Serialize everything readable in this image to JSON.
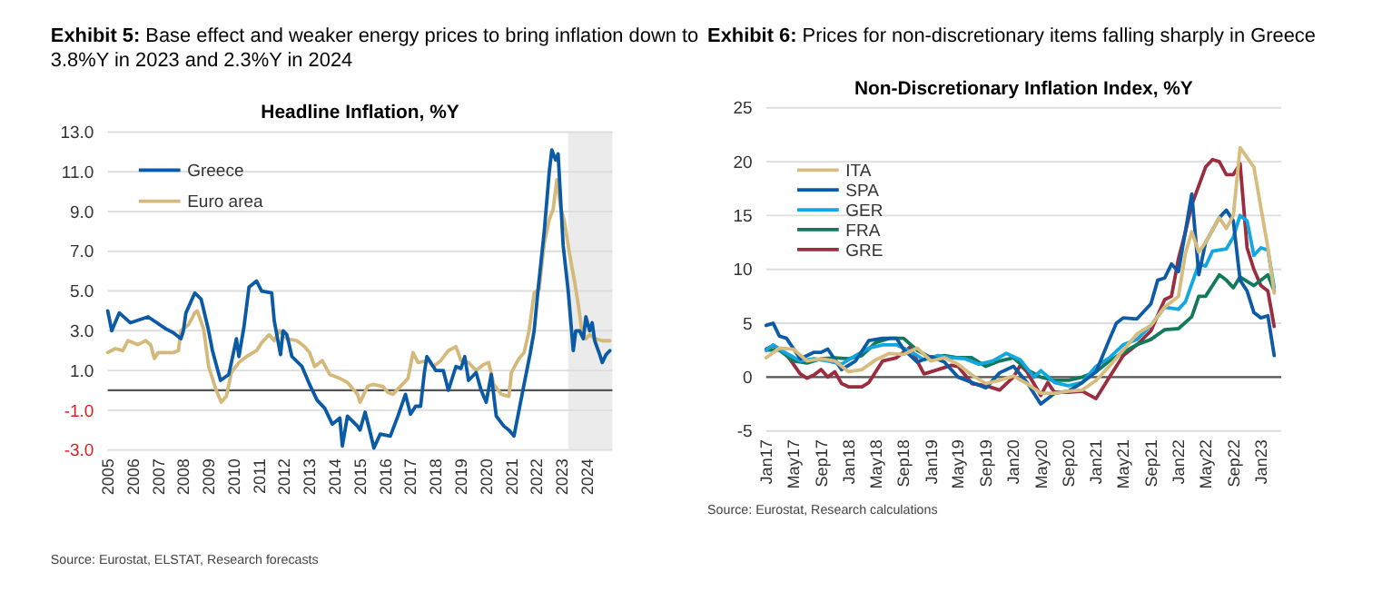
{
  "chart_data": [
    {
      "type": "line",
      "title": "Exhibit 5:  Base effect and weaker energy prices to bring inflation down to 3.8%Y in 2023 and 2.3%Y in 2024",
      "subtitle": "Headline Inflation, %Y",
      "annotations": [
        "Source: Eurostat, ELSTAT, Research forecasts"
      ],
      "series": [
        {
          "name": "Greece",
          "color": "#0b5aa5",
          "x": [
            2005.0,
            2005.16,
            2005.46,
            2005.9,
            2006.6,
            2007.3,
            2007.6,
            2007.9,
            2008.0,
            2008.1,
            2008.45,
            2008.7,
            2009.0,
            2009.15,
            2009.47,
            2009.8,
            2010.1,
            2010.2,
            2010.4,
            2010.6,
            2010.9,
            2011.1,
            2011.5,
            2011.6,
            2011.85,
            2011.95,
            2012.1,
            2012.3,
            2012.7,
            2013.0,
            2013.3,
            2013.6,
            2013.9,
            2014.2,
            2014.3,
            2014.5,
            2014.9,
            2015.0,
            2015.2,
            2015.4,
            2015.55,
            2015.8,
            2016.2,
            2016.5,
            2016.8,
            2017.0,
            2017.2,
            2017.4,
            2017.55,
            2017.65,
            2018.0,
            2018.3,
            2018.5,
            2018.8,
            2019.0,
            2019.15,
            2019.3,
            2019.6,
            2019.8,
            2020.0,
            2020.2,
            2020.4,
            2020.7,
            2020.9,
            2021.1,
            2021.3,
            2021.5,
            2021.75,
            2021.9,
            2022.05,
            2022.3,
            2022.5,
            2022.6,
            2022.75,
            2022.85,
            2022.95,
            2023.05,
            2023.25,
            2023.45,
            2023.55,
            2023.7,
            2023.85,
            2023.95,
            2024.1,
            2024.2,
            2024.3,
            2024.5,
            2024.6,
            2024.75,
            2024.9
          ],
          "values": [
            4.0,
            3.0,
            3.9,
            3.4,
            3.7,
            3.1,
            2.9,
            2.6,
            3.0,
            3.9,
            4.9,
            4.6,
            3.0,
            2.0,
            0.5,
            0.8,
            2.6,
            1.7,
            3.2,
            5.2,
            5.5,
            5.0,
            4.9,
            3.5,
            1.8,
            3.0,
            2.8,
            1.7,
            1.2,
            0.3,
            -0.5,
            -0.9,
            -1.7,
            -1.4,
            -2.8,
            -1.3,
            -1.8,
            -2.0,
            -1.1,
            -2.1,
            -2.9,
            -2.2,
            -2.3,
            -1.3,
            -0.2,
            -1.2,
            -0.8,
            -0.8,
            0.9,
            1.7,
            1.0,
            1.0,
            0.0,
            1.2,
            1.1,
            1.7,
            0.5,
            0.9,
            0.0,
            -0.6,
            0.8,
            -1.3,
            -1.8,
            -2.0,
            -2.3,
            -1.0,
            0.3,
            1.9,
            3.0,
            5.0,
            8.0,
            11.0,
            12.1,
            11.6,
            11.9,
            9.6,
            7.3,
            5.0,
            2.0,
            3.0,
            3.0,
            2.6,
            3.7,
            3.0,
            3.4,
            2.5,
            1.8,
            1.4,
            1.8,
            2.0
          ]
        },
        {
          "name": "Euro area",
          "color": "#d4b97a",
          "x": [
            2005.0,
            2005.3,
            2005.6,
            2005.8,
            2006.2,
            2006.5,
            2006.7,
            2006.85,
            2007.0,
            2007.6,
            2007.8,
            2007.9,
            2008.2,
            2008.45,
            2008.55,
            2008.8,
            2009.0,
            2009.3,
            2009.5,
            2009.7,
            2009.9,
            2010.2,
            2010.5,
            2010.9,
            2011.1,
            2011.4,
            2011.6,
            2011.8,
            2012.1,
            2012.5,
            2012.8,
            2013.0,
            2013.2,
            2013.5,
            2013.8,
            2014.2,
            2014.5,
            2014.9,
            2015.0,
            2015.3,
            2015.5,
            2015.9,
            2016.1,
            2016.3,
            2016.6,
            2016.9,
            2017.1,
            2017.3,
            2017.7,
            2017.9,
            2018.2,
            2018.5,
            2018.8,
            2019.0,
            2019.3,
            2019.6,
            2019.9,
            2020.1,
            2020.3,
            2020.6,
            2020.9,
            2021.0,
            2021.3,
            2021.5,
            2021.7,
            2021.9,
            2022.1,
            2022.3,
            2022.5,
            2022.65,
            2022.8,
            2022.95,
            2023.1,
            2023.3,
            2023.5,
            2023.65,
            2023.8,
            2023.95,
            2024.1,
            2024.3,
            2024.6,
            2024.9
          ],
          "values": [
            1.9,
            2.1,
            2.0,
            2.5,
            2.3,
            2.5,
            2.3,
            1.6,
            1.9,
            1.9,
            2.0,
            3.0,
            3.3,
            3.9,
            4.0,
            3.1,
            1.2,
            0.0,
            -0.6,
            -0.3,
            0.9,
            1.4,
            1.7,
            2.0,
            2.4,
            2.8,
            2.5,
            3.0,
            2.6,
            2.5,
            2.2,
            1.9,
            1.2,
            1.5,
            0.8,
            0.6,
            0.4,
            -0.2,
            -0.6,
            0.2,
            0.3,
            0.2,
            -0.1,
            -0.2,
            0.2,
            0.6,
            1.9,
            1.4,
            1.5,
            1.2,
            1.5,
            2.0,
            2.2,
            1.5,
            1.4,
            1.0,
            1.3,
            1.4,
            0.3,
            -0.2,
            -0.3,
            0.9,
            1.6,
            1.9,
            3.0,
            4.9,
            5.1,
            7.4,
            8.6,
            9.1,
            10.6,
            9.2,
            8.5,
            6.9,
            5.5,
            4.3,
            2.9,
            2.6,
            2.8,
            2.6,
            2.5,
            2.5
          ]
        }
      ],
      "xlim": [
        2005,
        2025
      ],
      "xticks": [
        2005,
        2006,
        2007,
        2008,
        2009,
        2010,
        2011,
        2012,
        2013,
        2014,
        2015,
        2016,
        2017,
        2018,
        2019,
        2020,
        2021,
        2022,
        2023,
        2024
      ],
      "ylim": [
        -3,
        13
      ],
      "yticks": [
        {
          "value": -3,
          "label": "-3.0"
        },
        {
          "value": -1,
          "label": "-1.0"
        },
        {
          "value": 1,
          "label": "1.0"
        },
        {
          "value": 3,
          "label": "3.0"
        },
        {
          "value": 5,
          "label": "5.0"
        },
        {
          "value": 7,
          "label": "7.0"
        },
        {
          "value": 9,
          "label": "9.0"
        },
        {
          "value": 11,
          "label": "11.0"
        },
        {
          "value": 13,
          "label": "13.0"
        }
      ],
      "grid": "y",
      "legend": "top left",
      "marker": "none",
      "line_style": "solid",
      "ref_lines": [
        {
          "axis": "y",
          "value": 0,
          "color": "#555555"
        }
      ],
      "bands": [
        {
          "axis": "x",
          "from": 2023.25,
          "to": 2025,
          "color": "#ebebeb"
        }
      ]
    },
    {
      "type": "line",
      "title": "Exhibit 6:  Prices for non-discretionary items falling sharply in Greece",
      "subtitle": "Non-Discretionary Inflation Index, %Y",
      "annotations": [
        "Source: Eurostat, Research calculations"
      ],
      "series": [
        {
          "name": "ITA",
          "color": "#d6bc7e",
          "x": [
            "2017-01",
            "2017-03",
            "2017-05",
            "2017-07",
            "2017-09",
            "2017-11",
            "2018-01",
            "2018-03",
            "2018-05",
            "2018-07",
            "2018-09",
            "2018-11",
            "2019-01",
            "2019-03",
            "2019-05",
            "2019-07",
            "2019-09",
            "2019-11",
            "2020-01",
            "2020-03",
            "2020-05",
            "2020-07",
            "2020-09",
            "2020-11",
            "2021-01",
            "2021-03",
            "2021-05",
            "2021-07",
            "2021-09",
            "2021-11",
            "2022-01",
            "2022-02",
            "2022-03",
            "2022-04",
            "2022-05",
            "2022-07",
            "2022-08",
            "2022-09",
            "2022-10",
            "2022-12",
            "2023-02",
            "2023-03"
          ],
          "values": [
            1.8,
            2.7,
            2.6,
            1.5,
            1.7,
            1.5,
            0.5,
            0.7,
            1.6,
            2.2,
            2.1,
            2.7,
            1.5,
            1.8,
            1.2,
            0.2,
            -0.6,
            -0.3,
            0.1,
            -0.6,
            -1.5,
            -1.5,
            -1.3,
            -1.2,
            -0.3,
            1.0,
            2.5,
            4.0,
            4.8,
            6.5,
            7.5,
            11.5,
            13.5,
            11.6,
            12.5,
            14.8,
            13.8,
            15.0,
            21.3,
            19.5,
            12.0,
            7.8
          ]
        },
        {
          "name": "SPA",
          "color": "#0d5aa7",
          "x": [
            "2017-01",
            "2017-02",
            "2017-03",
            "2017-04",
            "2017-06",
            "2017-08",
            "2017-09",
            "2017-10",
            "2017-12",
            "2018-02",
            "2018-04",
            "2018-06",
            "2018-08",
            "2018-09",
            "2018-11",
            "2019-01",
            "2019-03",
            "2019-05",
            "2019-07",
            "2019-09",
            "2019-11",
            "2020-01",
            "2020-03",
            "2020-05",
            "2020-07",
            "2020-09",
            "2020-11",
            "2021-01",
            "2021-03",
            "2021-04",
            "2021-05",
            "2021-07",
            "2021-09",
            "2021-10",
            "2021-11",
            "2021-12",
            "2022-01",
            "2022-03",
            "2022-04",
            "2022-05",
            "2022-07",
            "2022-08",
            "2022-09",
            "2022-10",
            "2022-11",
            "2022-12",
            "2023-01",
            "2023-02",
            "2023-03"
          ],
          "values": [
            4.8,
            5.0,
            3.8,
            3.6,
            1.7,
            2.3,
            2.3,
            2.6,
            0.7,
            1.5,
            3.4,
            3.6,
            3.6,
            2.6,
            1.4,
            1.9,
            1.4,
            0.0,
            -0.5,
            -1.0,
            0.4,
            1.0,
            -0.5,
            -2.5,
            -1.5,
            -1.3,
            -0.5,
            0.5,
            3.5,
            5.0,
            5.5,
            5.4,
            6.8,
            9.0,
            9.2,
            10.5,
            9.8,
            17.0,
            9.5,
            12.5,
            14.8,
            15.5,
            14.5,
            9.0,
            8.0,
            6.0,
            5.5,
            5.7,
            2.0
          ]
        },
        {
          "name": "GER",
          "color": "#12a7e0",
          "x": [
            "2017-01",
            "2017-02",
            "2017-04",
            "2017-06",
            "2017-08",
            "2017-10",
            "2017-12",
            "2018-02",
            "2018-04",
            "2018-06",
            "2018-08",
            "2018-10",
            "2018-12",
            "2019-02",
            "2019-04",
            "2019-06",
            "2019-08",
            "2019-10",
            "2019-12",
            "2020-02",
            "2020-04",
            "2020-05",
            "2020-07",
            "2020-09",
            "2020-11",
            "2021-01",
            "2021-03",
            "2021-05",
            "2021-07",
            "2021-09",
            "2021-11",
            "2022-01",
            "2022-02",
            "2022-04",
            "2022-05",
            "2022-06",
            "2022-08",
            "2022-09",
            "2022-10",
            "2022-11",
            "2022-12",
            "2023-01",
            "2023-02",
            "2023-03"
          ],
          "values": [
            2.5,
            3.0,
            2.2,
            1.5,
            1.7,
            1.5,
            1.2,
            2.0,
            2.7,
            3.0,
            3.0,
            2.4,
            1.6,
            2.0,
            1.8,
            1.7,
            1.2,
            1.5,
            2.2,
            1.6,
            0.0,
            0.6,
            -0.5,
            -0.8,
            -0.5,
            1.0,
            1.8,
            3.0,
            3.5,
            4.8,
            6.5,
            6.3,
            7.0,
            10.5,
            10.3,
            11.7,
            11.9,
            13.0,
            15.0,
            14.5,
            11.3,
            12.0,
            11.8,
            8.3
          ]
        },
        {
          "name": "FRA",
          "color": "#127a5c",
          "x": [
            "2017-01",
            "2017-03",
            "2017-05",
            "2017-07",
            "2017-09",
            "2017-11",
            "2018-01",
            "2018-03",
            "2018-05",
            "2018-07",
            "2018-09",
            "2018-11",
            "2019-01",
            "2019-03",
            "2019-05",
            "2019-07",
            "2019-09",
            "2019-11",
            "2020-01",
            "2020-03",
            "2020-05",
            "2020-07",
            "2020-09",
            "2020-11",
            "2021-01",
            "2021-03",
            "2021-05",
            "2021-07",
            "2021-09",
            "2021-11",
            "2022-01",
            "2022-03",
            "2022-04",
            "2022-05",
            "2022-07",
            "2022-08",
            "2022-09",
            "2022-10",
            "2022-12",
            "2023-02",
            "2023-03"
          ],
          "values": [
            2.5,
            2.5,
            1.5,
            1.3,
            1.7,
            1.8,
            1.7,
            2.0,
            3.2,
            3.6,
            3.6,
            2.5,
            1.8,
            2.0,
            1.8,
            1.8,
            1.0,
            1.5,
            1.8,
            0.7,
            0.0,
            -0.3,
            -0.3,
            0.0,
            0.5,
            1.5,
            2.3,
            3.0,
            3.5,
            4.4,
            4.5,
            5.6,
            7.5,
            7.5,
            9.5,
            9.0,
            8.3,
            9.3,
            8.5,
            9.5,
            8.0
          ]
        },
        {
          "name": "GRE",
          "color": "#9b2d3f",
          "x": [
            "2017-01",
            "2017-02",
            "2017-04",
            "2017-06",
            "2017-07",
            "2017-08",
            "2017-09",
            "2017-10",
            "2017-11",
            "2017-12",
            "2018-01",
            "2018-03",
            "2018-04",
            "2018-06",
            "2018-08",
            "2018-10",
            "2018-11",
            "2018-12",
            "2019-02",
            "2019-04",
            "2019-05",
            "2019-07",
            "2019-09",
            "2019-11",
            "2020-01",
            "2020-02",
            "2020-03",
            "2020-05",
            "2020-06",
            "2020-07",
            "2020-09",
            "2020-11",
            "2021-01",
            "2021-03",
            "2021-05",
            "2021-07",
            "2021-09",
            "2021-11",
            "2021-12",
            "2022-01",
            "2022-02",
            "2022-03",
            "2022-05",
            "2022-06",
            "2022-07",
            "2022-08",
            "2022-09",
            "2022-10",
            "2022-11",
            "2022-12",
            "2023-01",
            "2023-02",
            "2023-03"
          ],
          "values": [
            2.6,
            2.9,
            2.1,
            0.3,
            -0.1,
            0.2,
            0.7,
            0.0,
            0.5,
            -0.6,
            -0.9,
            -0.9,
            -0.5,
            1.5,
            1.8,
            2.8,
            1.5,
            0.3,
            0.7,
            1.1,
            1.0,
            -0.6,
            -0.8,
            -1.2,
            0.0,
            1.1,
            0.5,
            -1.7,
            -0.5,
            -1.4,
            -1.4,
            -1.3,
            -2.0,
            0.0,
            2.0,
            3.0,
            4.3,
            7.2,
            7.5,
            11.0,
            13.5,
            16.0,
            19.5,
            20.2,
            20.0,
            18.8,
            18.8,
            19.8,
            12.0,
            10.0,
            8.5,
            8.0,
            4.7
          ]
        }
      ],
      "xlim": [
        "2017-01",
        "2023-04"
      ],
      "xticks": [
        {
          "value": "2017-01",
          "label": "Jan17"
        },
        {
          "value": "2017-05",
          "label": "May17"
        },
        {
          "value": "2017-09",
          "label": "Sep17"
        },
        {
          "value": "2018-01",
          "label": "Jan18"
        },
        {
          "value": "2018-05",
          "label": "May18"
        },
        {
          "value": "2018-09",
          "label": "Sep18"
        },
        {
          "value": "2019-01",
          "label": "Jan19"
        },
        {
          "value": "2019-05",
          "label": "May19"
        },
        {
          "value": "2019-09",
          "label": "Sep19"
        },
        {
          "value": "2020-01",
          "label": "Jan20"
        },
        {
          "value": "2020-05",
          "label": "May20"
        },
        {
          "value": "2020-09",
          "label": "Sep20"
        },
        {
          "value": "2021-01",
          "label": "Jan21"
        },
        {
          "value": "2021-05",
          "label": "May21"
        },
        {
          "value": "2021-09",
          "label": "Sep21"
        },
        {
          "value": "2022-01",
          "label": "Jan22"
        },
        {
          "value": "2022-05",
          "label": "May22"
        },
        {
          "value": "2022-09",
          "label": "Sep22"
        },
        {
          "value": "2023-01",
          "label": "Jan23"
        }
      ],
      "ylim": [
        -5,
        25
      ],
      "yticks": [
        -5,
        0,
        5,
        10,
        15,
        20,
        25
      ],
      "grid": "y",
      "legend": "top left",
      "marker": "none",
      "line_style": "solid",
      "ref_lines": [
        {
          "axis": "y",
          "value": 0,
          "color": "#555555"
        }
      ]
    }
  ]
}
